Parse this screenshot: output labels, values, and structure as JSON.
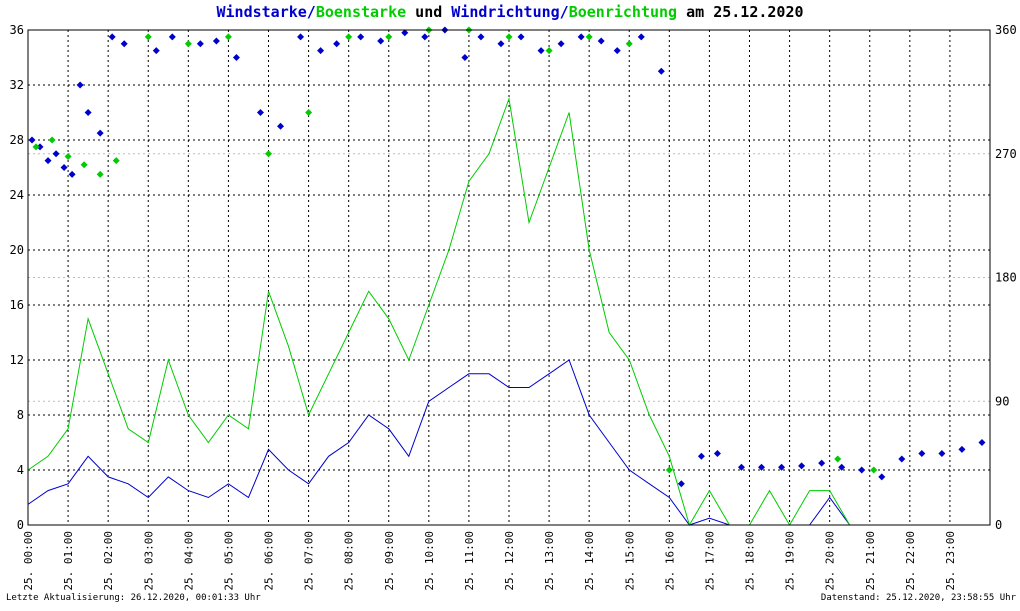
{
  "chart_data": {
    "type": "line",
    "title_parts": [
      {
        "text": "Windstarke",
        "color": "#0000cc"
      },
      {
        "text": "/",
        "color": "#0000cc"
      },
      {
        "text": "Boenstarke",
        "color": "#00cc00"
      },
      {
        "text": " und ",
        "color": "#000000"
      },
      {
        "text": "Windrichtung",
        "color": "#0000cc"
      },
      {
        "text": "/",
        "color": "#0000cc"
      },
      {
        "text": "Boenrichtung",
        "color": "#00cc00"
      },
      {
        "text": " am 25.12.2020",
        "color": "#000000"
      }
    ],
    "left_axis": {
      "min": 0,
      "max": 36,
      "ticks": [
        "0",
        "4",
        "8",
        "12",
        "16",
        "20",
        "24",
        "28",
        "32",
        "36"
      ]
    },
    "right_axis": {
      "min": 0,
      "max": 360,
      "ticks": [
        "0",
        "90",
        "180",
        "270",
        "360"
      ]
    },
    "x_axis": {
      "min_hour": 0,
      "max_hour": 24,
      "tick_labels": [
        "25. 00:00",
        "25. 01:00",
        "25. 02:00",
        "25. 03:00",
        "25. 04:00",
        "25. 05:00",
        "25. 06:00",
        "25. 07:00",
        "25. 08:00",
        "25. 09:00",
        "25. 10:00",
        "25. 11:00",
        "25. 12:00",
        "25. 13:00",
        "25. 14:00",
        "25. 15:00",
        "25. 16:00",
        "25. 17:00",
        "25. 18:00",
        "25. 19:00",
        "25. 20:00",
        "25. 21:00",
        "25. 22:00",
        "25. 23:00"
      ]
    },
    "grid": true,
    "series": [
      {
        "name": "Windstarke",
        "axis": "left",
        "kind": "line",
        "color": "#0000cc",
        "x": [
          0,
          0.5,
          1,
          1.5,
          2,
          2.5,
          3,
          3.5,
          4,
          4.5,
          5,
          5.5,
          6,
          6.5,
          7,
          7.5,
          8,
          8.5,
          9,
          9.5,
          10,
          10.5,
          11,
          11.5,
          12,
          12.5,
          13,
          13.5,
          14,
          14.5,
          15,
          15.5,
          16,
          16.5,
          17,
          17.5,
          18,
          18.5,
          19,
          19.5,
          20,
          20.5,
          21,
          21.5,
          22,
          22.5,
          23,
          23.5
        ],
        "y": [
          1.5,
          2.5,
          3,
          5,
          3.5,
          3,
          2,
          3.5,
          2.5,
          2,
          3,
          2,
          5.5,
          4,
          3,
          5,
          6,
          8,
          7,
          5,
          9,
          10,
          11,
          11,
          10,
          10,
          11,
          12,
          8,
          6,
          4,
          3,
          2,
          0,
          0.5,
          0,
          0,
          0,
          0,
          0,
          2,
          0,
          0,
          0,
          0,
          0,
          0,
          0
        ]
      },
      {
        "name": "Boenstarke",
        "axis": "left",
        "kind": "line",
        "color": "#00cc00",
        "x": [
          0,
          0.5,
          1,
          1.5,
          2,
          2.5,
          3,
          3.5,
          4,
          4.5,
          5,
          5.5,
          6,
          6.5,
          7,
          7.5,
          8,
          8.5,
          9,
          9.5,
          10,
          10.5,
          11,
          11.5,
          12,
          12.5,
          13,
          13.5,
          14,
          14.5,
          15,
          15.5,
          16,
          16.5,
          17,
          17.5,
          18,
          18.5,
          19,
          19.5,
          20,
          20.5,
          21,
          21.5,
          22,
          22.5,
          23,
          23.5
        ],
        "y": [
          4,
          5,
          7,
          15,
          11,
          7,
          6,
          12,
          8,
          6,
          8,
          7,
          17,
          13,
          8,
          11,
          14,
          17,
          15,
          12,
          16,
          20,
          25,
          27,
          31,
          22,
          26,
          30,
          20,
          14,
          12,
          8,
          5,
          0,
          2.5,
          0,
          0,
          2.5,
          0,
          2.5,
          2.5,
          0,
          0,
          0,
          0,
          0,
          0,
          0
        ]
      },
      {
        "name": "Windrichtung",
        "axis": "right",
        "kind": "scatter",
        "color": "#0000cc",
        "x": [
          0.1,
          0.3,
          0.5,
          0.7,
          0.9,
          1.1,
          1.3,
          1.5,
          1.8,
          2.1,
          2.4,
          3.2,
          3.6,
          4.3,
          4.7,
          5.2,
          5.8,
          6.3,
          6.8,
          7.3,
          7.7,
          8.3,
          8.8,
          9.4,
          9.9,
          10.4,
          10.9,
          11.3,
          11.8,
          12.3,
          12.8,
          13.3,
          13.8,
          14.3,
          14.7,
          15.3,
          15.8,
          16.3,
          16.8,
          17.2,
          17.8,
          18.3,
          18.8,
          19.3,
          19.8,
          20.3,
          20.8,
          21.3,
          21.8,
          22.3,
          22.8,
          23.3,
          23.8
        ],
        "y": [
          280,
          275,
          265,
          270,
          260,
          255,
          320,
          300,
          285,
          355,
          350,
          345,
          355,
          350,
          352,
          340,
          300,
          290,
          355,
          345,
          350,
          355,
          352,
          358,
          355,
          360,
          340,
          355,
          350,
          355,
          345,
          350,
          355,
          352,
          345,
          355,
          330,
          30,
          50,
          52,
          42,
          42,
          42,
          43,
          45,
          42,
          40,
          35,
          48,
          52,
          52,
          55,
          60
        ]
      },
      {
        "name": "Boenrichtung",
        "axis": "right",
        "kind": "scatter",
        "color": "#00cc00",
        "x": [
          0.2,
          0.6,
          1.0,
          1.4,
          1.8,
          2.2,
          3.0,
          4.0,
          5.0,
          6.0,
          7.0,
          8.0,
          9.0,
          10.0,
          11.0,
          12.0,
          13.0,
          14.0,
          15.0,
          16.0,
          20.2,
          21.1
        ],
        "y": [
          275,
          280,
          268,
          262,
          255,
          265,
          355,
          350,
          355,
          270,
          300,
          355,
          355,
          360,
          360,
          355,
          345,
          355,
          350,
          40,
          48,
          40
        ]
      }
    ],
    "footer_left": "Letzte Aktualisierung: 26.12.2020, 00:01:33 Uhr",
    "footer_right": "Datenstand: 25.12.2020, 23:58:55 Uhr"
  }
}
